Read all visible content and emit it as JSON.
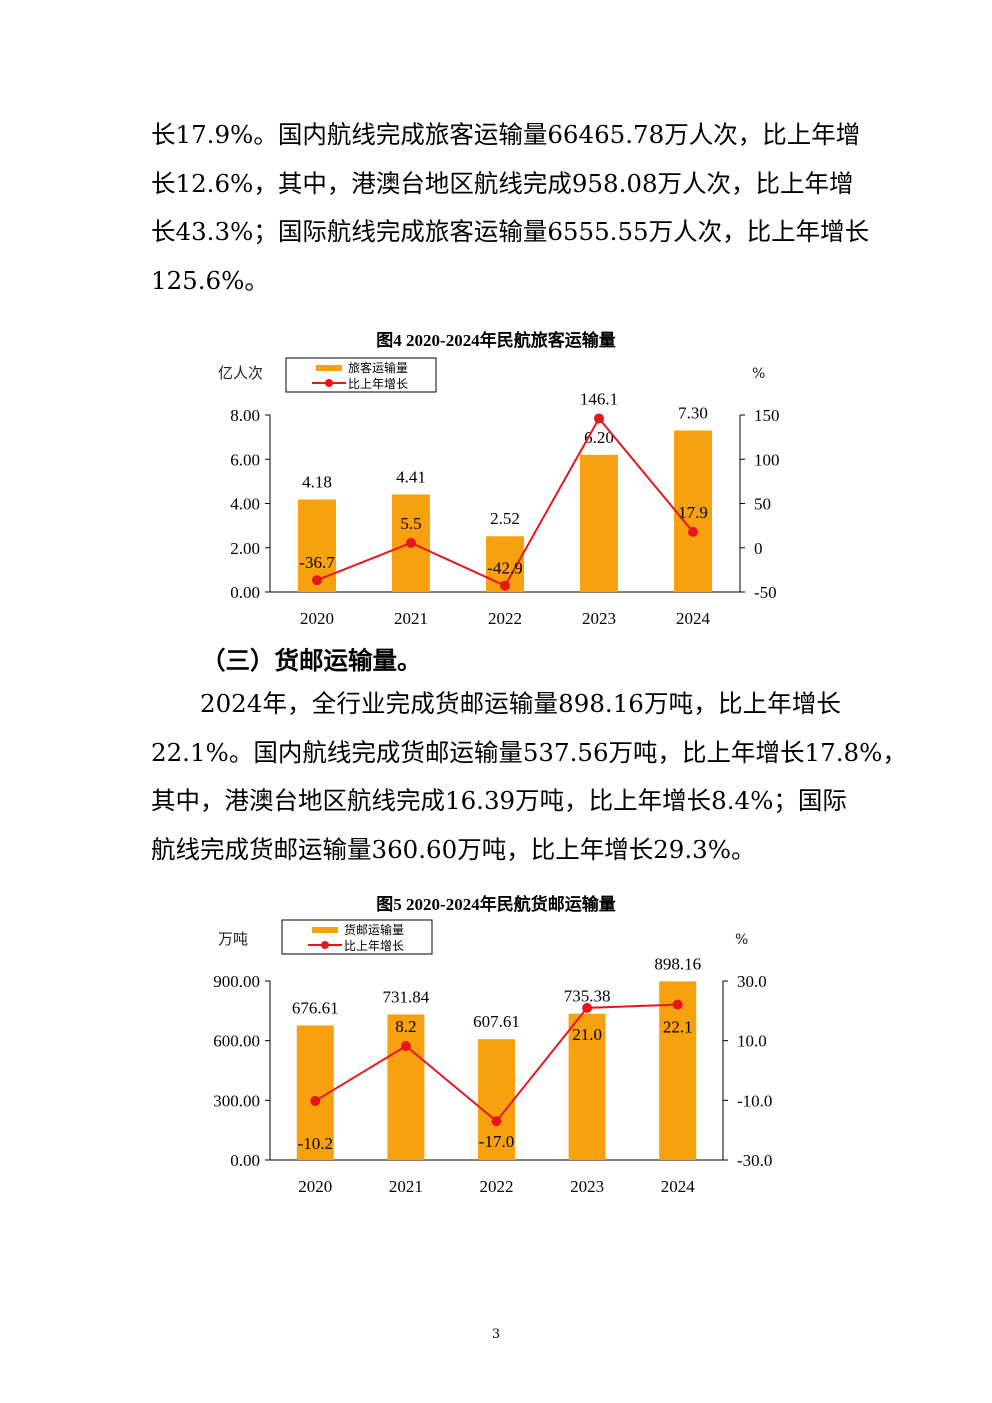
{
  "para1_lines": [
    "长17.9%。国内航线完成旅客运输量66465.78万人次，比上年增",
    "长12.6%，其中，港澳台地区航线完成958.08万人次，比上年增",
    "长43.3%；国际航线完成旅客运输量6555.55万人次，比上年增长",
    "125.6%。"
  ],
  "section_heading": "（三）货邮运输量。",
  "para2_lines": [
    "2024年，全行业完成货邮运输量898.16万吨，比上年增长",
    "22.1%。国内航线完成货邮运输量537.56万吨，比上年增长17.8%，",
    "其中，港澳台地区航线完成16.39万吨，比上年增长8.4%；国际",
    "航线完成货邮运输量360.60万吨，比上年增长29.3%。"
  ],
  "page_number": "3",
  "colors": {
    "bar": "#F7A10F",
    "line": "#E8151B",
    "axis": "#000000"
  },
  "chart_data": [
    {
      "type": "bar",
      "title": "图4  2020-2024年民航旅客运输量",
      "categories": [
        "2020",
        "2021",
        "2022",
        "2023",
        "2024"
      ],
      "left_unit": "亿人次",
      "right_unit": "%",
      "left_ticks": [
        "8.00",
        "6.00",
        "4.00",
        "2.00",
        "0.00"
      ],
      "right_ticks": [
        "150",
        "100",
        "50",
        "0",
        "-50"
      ],
      "ylim_left": [
        0,
        8
      ],
      "ylim_right": [
        -50,
        150
      ],
      "series": [
        {
          "name": "旅客运输量",
          "type": "bar",
          "values": [
            4.18,
            4.41,
            2.52,
            6.2,
            7.3
          ],
          "labels": [
            "4.18",
            "4.41",
            "2.52",
            "6.20",
            "7.30"
          ]
        },
        {
          "name": "比上年增长",
          "type": "line",
          "axis": "right",
          "values": [
            -36.7,
            5.5,
            -42.9,
            146.1,
            17.9
          ],
          "labels": [
            "-36.7",
            "5.5",
            "-42.9",
            "146.1",
            "17.9"
          ]
        }
      ]
    },
    {
      "type": "bar",
      "title": "图5  2020-2024年民航货邮运输量",
      "categories": [
        "2020",
        "2021",
        "2022",
        "2023",
        "2024"
      ],
      "left_unit": "万吨",
      "right_unit": "%",
      "left_ticks": [
        "900.00",
        "600.00",
        "300.00",
        "0.00"
      ],
      "right_ticks": [
        "30.0",
        "10.0",
        "-10.0",
        "-30.0"
      ],
      "ylim_left": [
        0,
        900
      ],
      "ylim_right": [
        -30,
        30
      ],
      "series": [
        {
          "name": "货邮运输量",
          "type": "bar",
          "values": [
            676.61,
            731.84,
            607.61,
            735.38,
            898.16
          ],
          "labels": [
            "676.61",
            "731.84",
            "607.61",
            "735.38",
            "898.16"
          ]
        },
        {
          "name": "比上年增长",
          "type": "line",
          "axis": "right",
          "values": [
            -10.2,
            8.2,
            -17.0,
            21.0,
            22.1
          ],
          "labels": [
            "-10.2",
            "8.2",
            "-17.0",
            "21.0",
            "22.1"
          ]
        }
      ]
    }
  ]
}
